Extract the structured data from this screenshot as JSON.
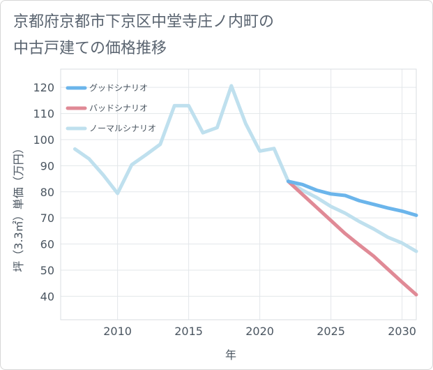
{
  "title_line1": "京都府京都市下京区中堂寺庄ノ内町の",
  "title_line2": "中古戸建ての価格推移",
  "chart_data": {
    "type": "line",
    "xlabel": "年",
    "ylabel": "坪（3.3㎡）単価（万円）",
    "xlim": [
      2006,
      2031
    ],
    "ylim": [
      31,
      127
    ],
    "xticks": [
      2010,
      2015,
      2020,
      2025,
      2030
    ],
    "yticks": [
      40,
      50,
      60,
      70,
      80,
      90,
      100,
      110,
      120
    ],
    "legend_position": "top-left",
    "series": [
      {
        "name": "グッドシナリオ",
        "color": "#6bb5eb",
        "x": [
          2022,
          2023,
          2024,
          2025,
          2026,
          2027,
          2028,
          2029,
          2030,
          2031
        ],
        "y": [
          84,
          82.8,
          80.6,
          79.2,
          78.6,
          76.6,
          75.2,
          73.8,
          72.6,
          71
        ]
      },
      {
        "name": "バッドシナリオ",
        "color": "#e08a96",
        "x": [
          2022,
          2023,
          2024,
          2025,
          2026,
          2027,
          2028,
          2029,
          2030,
          2031
        ],
        "y": [
          84,
          79,
          74,
          69,
          64,
          59.6,
          55.4,
          50.4,
          45.4,
          40.6
        ]
      },
      {
        "name": "ノーマルシナリオ",
        "color": "#bfe0ee",
        "x": [
          2007,
          2008,
          2009,
          2010,
          2011,
          2012,
          2013,
          2014,
          2015,
          2016,
          2017,
          2018,
          2019,
          2020,
          2021,
          2022,
          2023,
          2024,
          2025,
          2026,
          2027,
          2028,
          2029,
          2030,
          2031
        ],
        "y": [
          96.4,
          92.6,
          86.4,
          79.4,
          90.4,
          94.2,
          98.2,
          113,
          113,
          102.6,
          104.6,
          120.6,
          106.2,
          95.6,
          96.6,
          84,
          80.6,
          77.8,
          74.4,
          71.8,
          68.6,
          65.8,
          62.6,
          60.4,
          57.2
        ]
      }
    ]
  }
}
